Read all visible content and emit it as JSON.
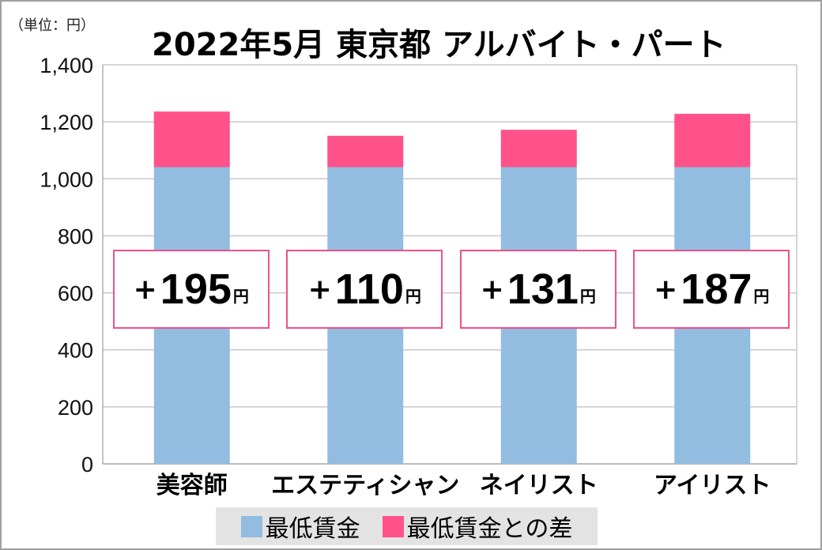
{
  "chart_data": {
    "type": "bar",
    "stacked": true,
    "title": "2022年5月 東京都 アルバイト・パート",
    "unit_label": "（単位：円）",
    "categories": [
      "美容師",
      "エステティシャン",
      "ネイリスト",
      "アイリスト"
    ],
    "series": [
      {
        "name": "最低賃金",
        "color": "#92bde0",
        "values": [
          1041,
          1041,
          1041,
          1041
        ]
      },
      {
        "name": "最低賃金との差",
        "color": "#ff528a",
        "values": [
          195,
          110,
          131,
          187
        ]
      }
    ],
    "annotations": [
      {
        "plus": "+",
        "value": "195",
        "unit": "円"
      },
      {
        "plus": "+",
        "value": "110",
        "unit": "円"
      },
      {
        "plus": "+",
        "value": "131",
        "unit": "円"
      },
      {
        "plus": "+",
        "value": "187",
        "unit": "円"
      }
    ],
    "ylim": [
      0,
      1400
    ],
    "yticks": [
      0,
      200,
      400,
      600,
      800,
      1000,
      1200,
      1400
    ],
    "ytick_labels": [
      "0",
      "200",
      "400",
      "600",
      "800",
      "1,000",
      "1,200",
      "1,400"
    ],
    "grid": true,
    "legend_position": "bottom"
  }
}
